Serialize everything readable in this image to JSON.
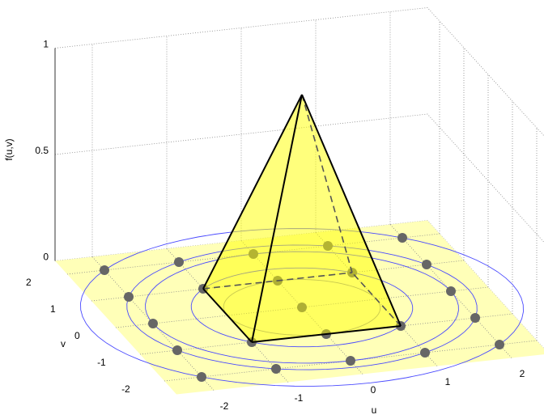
{
  "chart_data": {
    "type": "surface3d",
    "xlabel": "u",
    "ylabel": "v",
    "zlabel": "f(u,v)",
    "xlim": [
      -2.5,
      2.5
    ],
    "ylim": [
      -2.5,
      2.5
    ],
    "zlim": [
      0,
      1
    ],
    "xticks": [
      -2,
      -1,
      0,
      1,
      2
    ],
    "yticks": [
      -2,
      -1,
      0,
      1,
      2
    ],
    "zticks": [
      0,
      0.5,
      1
    ],
    "grid": true,
    "floor_color": "#ffffb8",
    "pyramid": {
      "apex": [
        0,
        0,
        1
      ],
      "base": [
        [
          -1,
          -1
        ],
        [
          1,
          -1
        ],
        [
          1,
          1
        ],
        [
          -1,
          1
        ]
      ],
      "color": "#ffff00"
    },
    "contours": [
      {
        "r": 1,
        "color": "#999999"
      },
      {
        "r": 1.414,
        "color": "#4a4aff"
      },
      {
        "r": 2,
        "color": "#4a4aff"
      },
      {
        "r": 2.236,
        "color": "#4a4aff"
      },
      {
        "r": 2.828,
        "color": "#4a4aff"
      }
    ],
    "points": {
      "color": "#666666",
      "x": [
        -2,
        -2,
        -2,
        -2,
        -2,
        -1,
        -1,
        -1,
        -1,
        0,
        0,
        0,
        0,
        0,
        1,
        1,
        1,
        1,
        2,
        2,
        2,
        2,
        2
      ],
      "y": [
        2,
        1,
        0,
        -1,
        -2,
        2,
        1,
        -1,
        -2,
        2,
        1,
        0,
        -1,
        -2,
        2,
        1,
        -1,
        -2,
        2,
        1,
        0,
        -1,
        -2
      ]
    }
  }
}
